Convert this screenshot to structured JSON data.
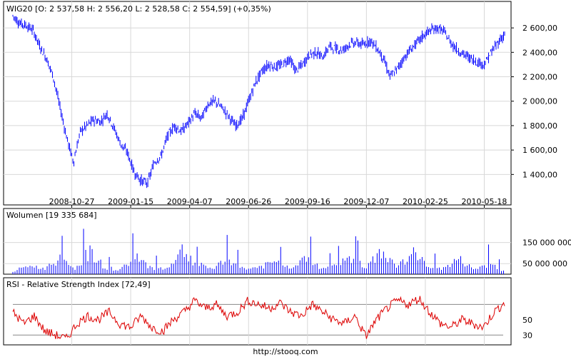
{
  "chart_data": [
    {
      "id": "price",
      "type": "ohlc",
      "title": "WIG20 [O: 2 537,58  H: 2 556,20  L: 2 528,58  C: 2 554,59] (+0,35%)",
      "xlabel": "",
      "ylabel": "",
      "ylim": [
        1250,
        2700
      ],
      "yticks": [
        1400,
        1600,
        1800,
        2000,
        2200,
        2400,
        2600
      ],
      "ytick_labels": [
        "1 400,00",
        "1 600,00",
        "1 800,00",
        "2 000,00",
        "2 200,00",
        "2 400,00",
        "2 600,00"
      ],
      "x_tick_labels": [
        "2008-10-27",
        "2009-01-15",
        "2009-04-07",
        "2009-06-26",
        "2009-09-16",
        "2009-12-07",
        "2010-02-25",
        "2010-05-18"
      ],
      "x_tick_index": [
        55,
        110,
        165,
        220,
        275,
        330,
        385,
        440
      ],
      "grid": true,
      "color": "#0000ff",
      "series": [
        {
          "values": [
            2700,
            2640,
            2620,
            2580,
            2450,
            2350,
            2200,
            1950,
            1700,
            1500,
            1750,
            1800,
            1850,
            1830,
            1900,
            1780,
            1650,
            1580,
            1420,
            1350,
            1330,
            1500,
            1550,
            1720,
            1800,
            1750,
            1820,
            1900,
            1860,
            1980,
            2000,
            1950,
            1880,
            1800,
            1850,
            2000,
            2150,
            2250,
            2300,
            2280,
            2300,
            2350,
            2250,
            2300,
            2380,
            2400,
            2360,
            2450,
            2430,
            2420,
            2470,
            2480,
            2460,
            2500,
            2440,
            2350,
            2200,
            2260,
            2350,
            2420,
            2480,
            2540,
            2580,
            2600,
            2570,
            2480,
            2420,
            2380,
            2350,
            2320,
            2300,
            2400,
            2480,
            2550
          ]
        }
      ]
    },
    {
      "id": "volume",
      "type": "bar",
      "title": "Wolumen [19 335 684]",
      "ylim": [
        0,
        250000000
      ],
      "yticks": [
        50000000,
        150000000
      ],
      "ytick_labels": [
        "50 000 000",
        "150 000 000"
      ],
      "grid": true,
      "color": "#0000ff",
      "values": [
        19000000,
        75000000,
        45000000,
        130000000,
        50000000,
        190000000,
        55000000,
        40000000,
        140000000,
        60000000,
        45000000,
        210000000,
        80000000,
        50000000,
        120000000,
        45000000,
        60000000,
        100000000,
        55000000,
        150000000,
        48000000,
        70000000,
        140000000,
        50000000,
        200000000,
        60000000,
        180000000,
        75000000,
        45000000,
        130000000,
        40000000,
        90000000,
        19335684
      ]
    },
    {
      "id": "rsi",
      "type": "line",
      "title": "RSI - Relative Strength Index [72,49]",
      "ylim": [
        20,
        90
      ],
      "yticks": [
        30,
        50
      ],
      "ytick_labels": [
        "30",
        "50"
      ],
      "grid": true,
      "color": "#dd0000",
      "values": [
        60,
        45,
        55,
        35,
        30,
        25,
        45,
        55,
        50,
        60,
        45,
        40,
        55,
        40,
        35,
        50,
        60,
        75,
        65,
        70,
        55,
        60,
        75,
        70,
        65,
        72,
        60,
        55,
        70,
        60,
        50,
        45,
        55,
        28,
        50,
        65,
        75,
        70,
        78,
        60,
        45,
        40,
        50,
        45,
        40,
        60,
        72
      ]
    }
  ],
  "footer": {
    "url": "http://stooq.com"
  }
}
